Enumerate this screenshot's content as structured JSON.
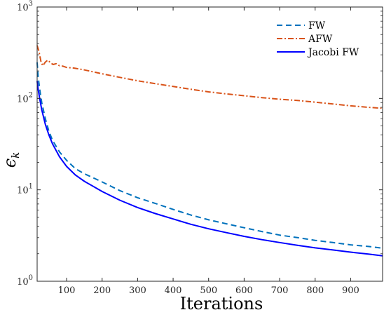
{
  "chart_data": {
    "type": "line",
    "title": "",
    "xlabel": "Iterations",
    "ylabel": "ϵ",
    "ylabel_sub": "k",
    "xlim": [
      17,
      990
    ],
    "ylim": [
      1,
      1000
    ],
    "yscale": "log",
    "grid": false,
    "legend_position": "top-right",
    "x_ticks": [
      100,
      200,
      300,
      400,
      500,
      600,
      700,
      800,
      900
    ],
    "x_tick_labels": [
      "100",
      "200",
      "300",
      "400",
      "500",
      "600",
      "700",
      "800",
      "900"
    ],
    "y_ticks": [
      1,
      10,
      100,
      1000
    ],
    "y_tick_labels": [
      {
        "base": "10",
        "exp": "0"
      },
      {
        "base": "10",
        "exp": "1"
      },
      {
        "base": "10",
        "exp": "2"
      },
      {
        "base": "10",
        "exp": "3"
      }
    ],
    "series": [
      {
        "name": "FW",
        "color": "#0072bd",
        "style": "dashed",
        "x": [
          17,
          20,
          25,
          30,
          40,
          50,
          60,
          80,
          100,
          125,
          150,
          200,
          250,
          300,
          350,
          400,
          450,
          500,
          550,
          600,
          650,
          700,
          750,
          800,
          850,
          900,
          950,
          990
        ],
        "y": [
          248,
          170,
          120,
          90,
          60,
          44,
          35,
          26,
          21,
          17,
          15,
          12.2,
          9.8,
          8.2,
          7.1,
          6.1,
          5.3,
          4.7,
          4.25,
          3.85,
          3.5,
          3.2,
          3.0,
          2.8,
          2.65,
          2.5,
          2.4,
          2.3
        ]
      },
      {
        "name": "AFW",
        "color": "#d95319",
        "style": "dashdot",
        "x": [
          17,
          22,
          28,
          33,
          40,
          47,
          55,
          62,
          70,
          80,
          90,
          100,
          120,
          150,
          200,
          250,
          300,
          350,
          400,
          450,
          500,
          550,
          600,
          650,
          700,
          750,
          800,
          850,
          900,
          950,
          990
        ],
        "y": [
          380,
          330,
          250,
          228,
          250,
          262,
          245,
          235,
          240,
          228,
          225,
          218,
          215,
          205,
          186,
          170,
          156,
          145,
          135,
          126,
          118,
          112,
          107,
          102,
          98,
          95,
          91,
          87,
          83,
          80,
          78
        ]
      },
      {
        "name": "Jacobi FW",
        "color": "#0000ff",
        "style": "solid",
        "x": [
          17,
          20,
          25,
          30,
          40,
          50,
          60,
          80,
          100,
          125,
          150,
          200,
          250,
          300,
          350,
          400,
          450,
          500,
          550,
          600,
          650,
          700,
          750,
          800,
          850,
          900,
          950,
          990
        ],
        "y": [
          155,
          125,
          95,
          75,
          52,
          40,
          32,
          23,
          18,
          14.5,
          12.4,
          9.6,
          7.7,
          6.4,
          5.5,
          4.8,
          4.2,
          3.75,
          3.4,
          3.1,
          2.85,
          2.65,
          2.47,
          2.32,
          2.2,
          2.08,
          1.98,
          1.9
        ]
      }
    ]
  }
}
